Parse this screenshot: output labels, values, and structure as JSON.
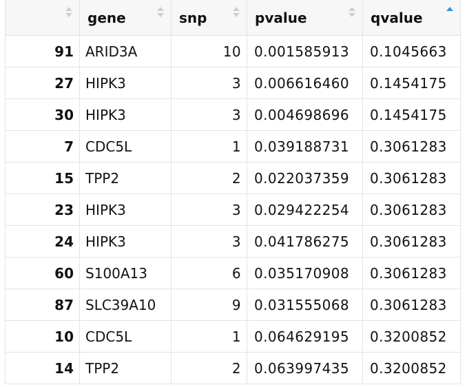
{
  "table": {
    "columns": [
      {
        "key": "rowname",
        "label": ""
      },
      {
        "key": "gene",
        "label": "gene"
      },
      {
        "key": "snp",
        "label": "snp"
      },
      {
        "key": "pvalue",
        "label": "pvalue"
      },
      {
        "key": "qvalue",
        "label": "qvalue"
      }
    ],
    "sorted_column": "qvalue",
    "sort_direction": "ascending",
    "sort_active_color": "#3b8fd9",
    "rows": [
      {
        "rowname": "91",
        "gene": "ARID3A",
        "snp": "10",
        "pvalue": "0.001585913",
        "qvalue": "0.1045663"
      },
      {
        "rowname": "27",
        "gene": "HIPK3",
        "snp": "3",
        "pvalue": "0.006616460",
        "qvalue": "0.1454175"
      },
      {
        "rowname": "30",
        "gene": "HIPK3",
        "snp": "3",
        "pvalue": "0.004698696",
        "qvalue": "0.1454175"
      },
      {
        "rowname": "7",
        "gene": "CDC5L",
        "snp": "1",
        "pvalue": "0.039188731",
        "qvalue": "0.3061283"
      },
      {
        "rowname": "15",
        "gene": "TPP2",
        "snp": "2",
        "pvalue": "0.022037359",
        "qvalue": "0.3061283"
      },
      {
        "rowname": "23",
        "gene": "HIPK3",
        "snp": "3",
        "pvalue": "0.029422254",
        "qvalue": "0.3061283"
      },
      {
        "rowname": "24",
        "gene": "HIPK3",
        "snp": "3",
        "pvalue": "0.041786275",
        "qvalue": "0.3061283"
      },
      {
        "rowname": "60",
        "gene": "S100A13",
        "snp": "6",
        "pvalue": "0.035170908",
        "qvalue": "0.3061283"
      },
      {
        "rowname": "87",
        "gene": "SLC39A10",
        "snp": "9",
        "pvalue": "0.031555068",
        "qvalue": "0.3061283"
      },
      {
        "rowname": "10",
        "gene": "CDC5L",
        "snp": "1",
        "pvalue": "0.064629195",
        "qvalue": "0.3200852"
      },
      {
        "rowname": "14",
        "gene": "TPP2",
        "snp": "2",
        "pvalue": "0.063997435",
        "qvalue": "0.3200852"
      }
    ]
  }
}
